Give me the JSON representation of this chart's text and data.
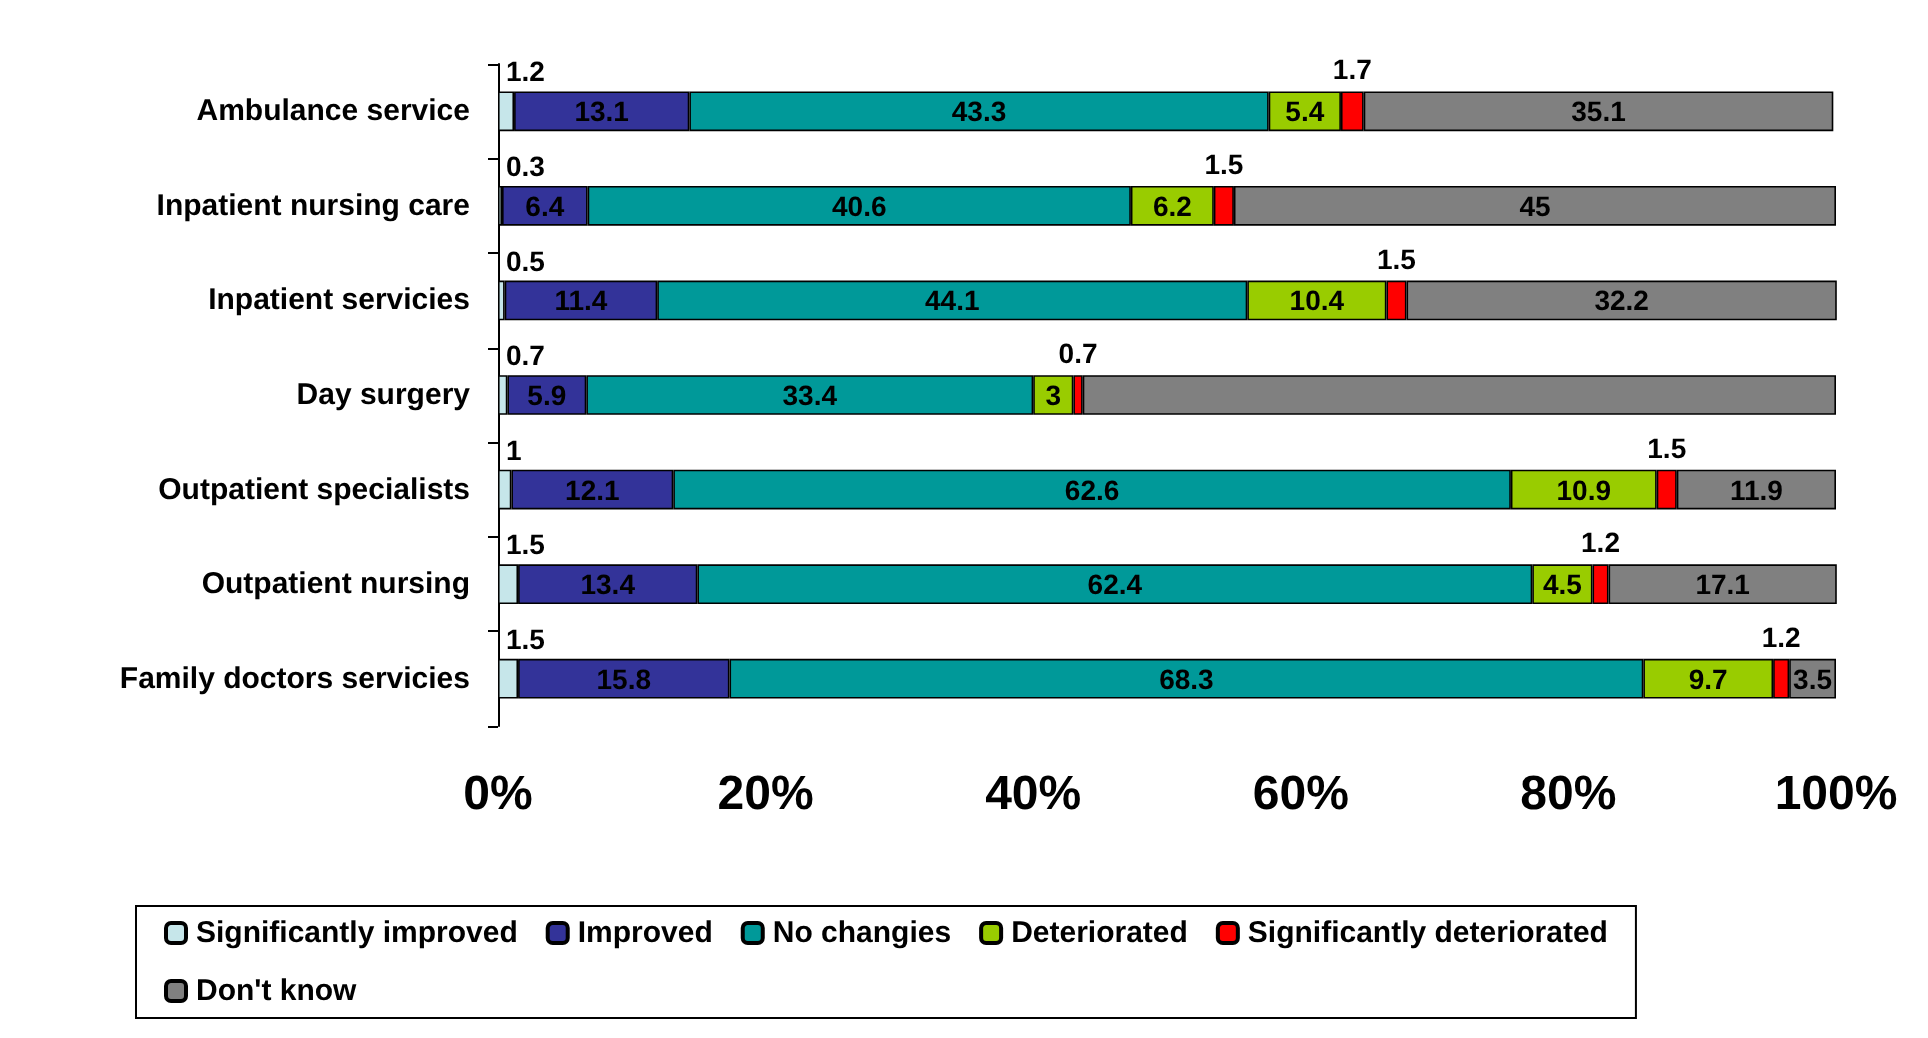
{
  "chart_data": {
    "type": "bar",
    "orientation": "horizontal",
    "stacked": true,
    "grid": false,
    "legend": "bottom",
    "categories": [
      "Ambulance service",
      "Inpatient nursing care",
      "Inpatient servicies",
      "Day surgery",
      "Outpatient specialists",
      "Outpatient nursing",
      "Family doctors servicies"
    ],
    "xlim": [
      0,
      100
    ],
    "xticks": [
      {
        "value": 0,
        "label": "0%"
      },
      {
        "value": 20,
        "label": "20%"
      },
      {
        "value": 40,
        "label": "40%"
      },
      {
        "value": 60,
        "label": "60%"
      },
      {
        "value": 80,
        "label": "80%"
      },
      {
        "value": 100,
        "label": "100%"
      }
    ],
    "series": [
      {
        "name": "Significantly improved",
        "color": "#c6e6ea",
        "values": [
          1.2,
          0.3,
          0.5,
          0.7,
          1,
          1.5,
          1.5
        ],
        "value_labels": [
          "1.2",
          "0.3",
          "0.5",
          "0.7",
          "1",
          "1.5",
          "1.5"
        ]
      },
      {
        "name": "Improved",
        "color": "#333399",
        "values": [
          13.1,
          6.4,
          11.4,
          5.9,
          12.1,
          13.4,
          15.8
        ],
        "value_labels": [
          "13.1",
          "6.4",
          "11.4",
          "5.9",
          "12.1",
          "13.4",
          "15.8"
        ]
      },
      {
        "name": "No changies",
        "color": "#009999",
        "values": [
          43.3,
          40.6,
          44.1,
          33.4,
          62.6,
          62.4,
          68.3
        ],
        "value_labels": [
          "43.3",
          "40.6",
          "44.1",
          "33.4",
          "62.6",
          "62.4",
          "68.3"
        ]
      },
      {
        "name": "Deteriorated",
        "color": "#99cc00",
        "values": [
          5.4,
          6.2,
          10.4,
          3,
          10.9,
          4.5,
          9.7
        ],
        "value_labels": [
          "5.4",
          "6.2",
          "10.4",
          "3",
          "10.9",
          "4.5",
          "9.7"
        ]
      },
      {
        "name": "Significantly deteriorated",
        "color": "#ff0000",
        "values": [
          1.7,
          1.5,
          1.5,
          0.7,
          1.5,
          1.2,
          1.2
        ],
        "value_labels": [
          "1.7",
          "1.5",
          "1.5",
          "0.7",
          "1.5",
          "1.2",
          "1.2"
        ]
      },
      {
        "name": "Don't know",
        "color": "#808080",
        "values": [
          35.1,
          45,
          32.2,
          56.3,
          11.9,
          17.1,
          3.5
        ],
        "value_labels": [
          "35.1",
          "45",
          "32.2",
          null,
          "11.9",
          "17.1",
          "3.5"
        ]
      }
    ]
  }
}
